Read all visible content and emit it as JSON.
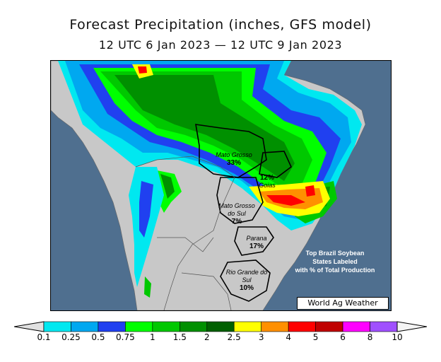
{
  "title": "Forecast Precipitation (inches, GFS model)",
  "subtitle": "12 UTC 6 Jan 2023 — 12 UTC 9 Jan 2023",
  "states": [
    {
      "name": "Mato Grosso",
      "pct": "33%"
    },
    {
      "name": "Goias",
      "pct": "12%"
    },
    {
      "name": "Mato Grosso do Sul",
      "pct": "7%"
    },
    {
      "name": "Parana",
      "pct": "17%"
    },
    {
      "name": "Rio Grande do Sul",
      "pct": "10%"
    }
  ],
  "note_lines": [
    "Top Brazil Soybean",
    "States Labeled",
    "with % of Total Production"
  ],
  "credit": "World Ag Weather",
  "legend": {
    "ticks": [
      "0.1",
      "0.25",
      "0.5",
      "0.75",
      "1",
      "1.5",
      "2",
      "2.5",
      "3",
      "4",
      "5",
      "6",
      "8",
      "10"
    ],
    "colors": [
      "#00e8f0",
      "#00a8f0",
      "#2040f0",
      "#00ff00",
      "#00c800",
      "#009000",
      "#006000",
      "#ffff00",
      "#ff9000",
      "#ff0000",
      "#c00000",
      "#ff00ff",
      "#a050ff"
    ]
  },
  "colors": {
    "ocean": "#4f6f8f",
    "land": "#c8c8c8"
  }
}
